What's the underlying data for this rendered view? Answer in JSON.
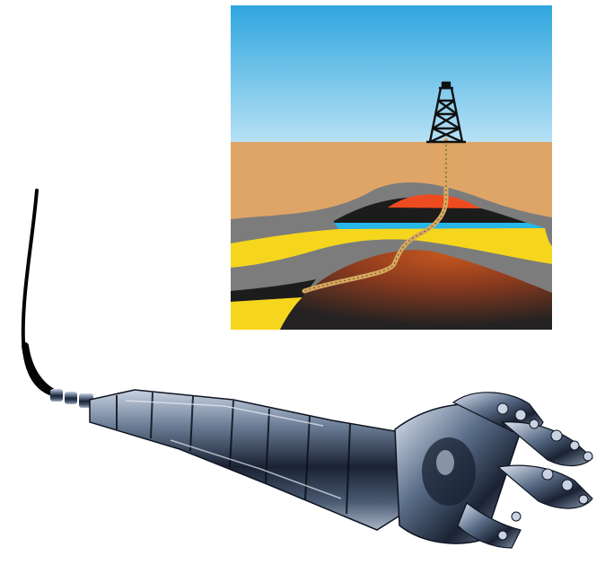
{
  "illustrations": {
    "geology_panel": {
      "icon": "oil-derrick-icon",
      "colors": {
        "sky_top": "#2fa6de",
        "sky_bottom": "#b6e1f5",
        "sand": "#dfa567",
        "gray_rock": "#7c7c7c",
        "yellow_layer": "#f6d61c",
        "blue_layer": "#27b6e8",
        "black_layer": "#1c1c1c",
        "red_reservoir": "#ef4b20",
        "bottom_rock_top": "#b04a1e",
        "bottom_rock_bottom": "#222222",
        "well_pipe": "#d7a85f"
      }
    },
    "drill_string": {
      "icon": "drill-bit-icon",
      "colors": {
        "cable": "#050505",
        "metal_dark": "#1a2233",
        "metal_mid": "#4a5a72",
        "metal_light": "#c9d3e2"
      }
    }
  }
}
